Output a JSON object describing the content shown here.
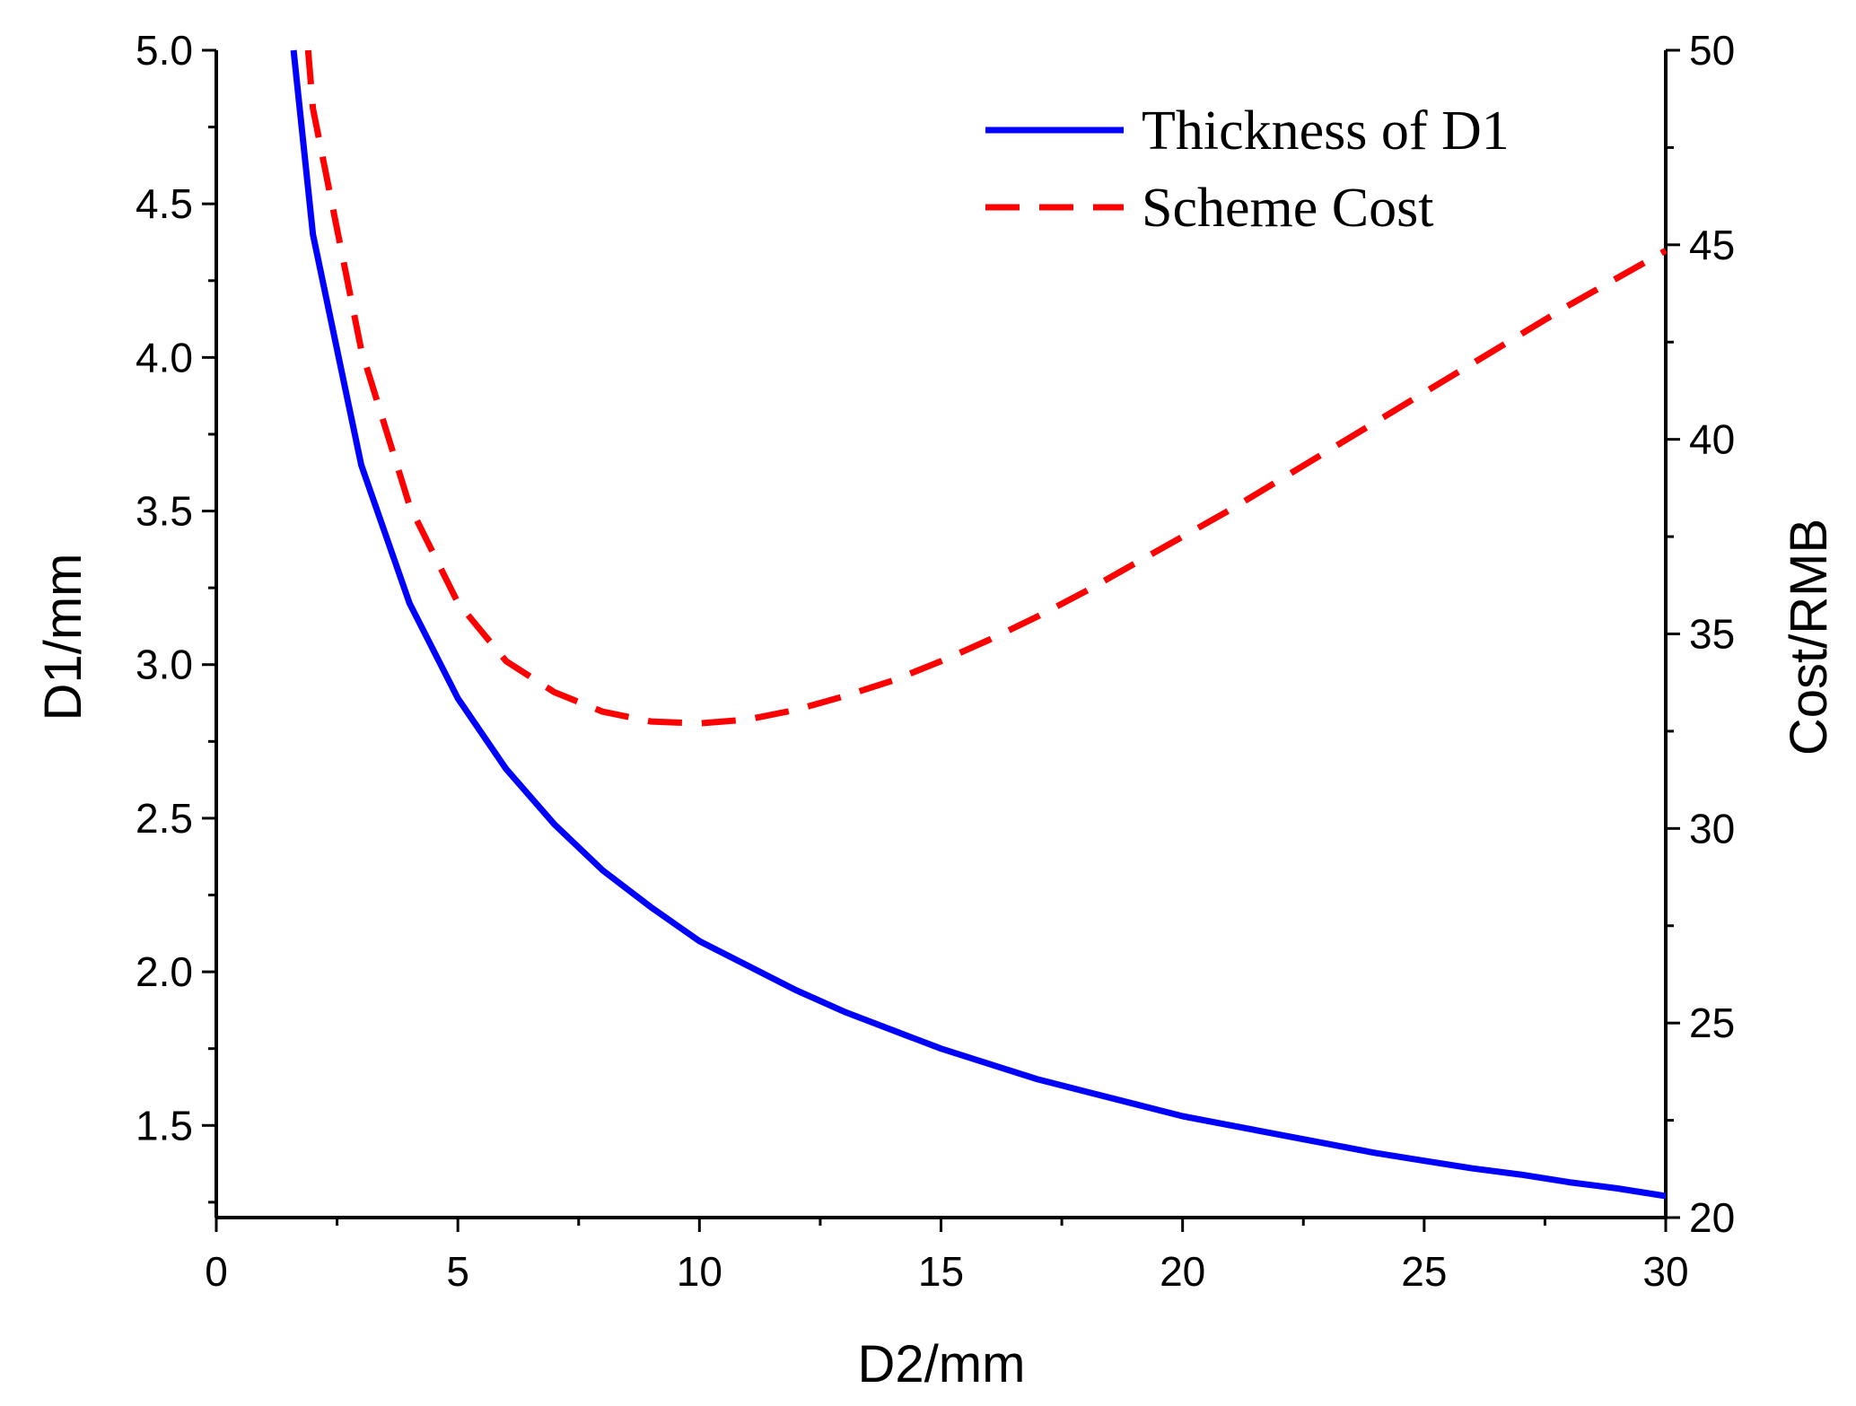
{
  "chart_data": {
    "type": "line",
    "title": "",
    "xlabel": "D2/mm",
    "ylabel": "D1/mm",
    "y2label": "Cost/RMB",
    "xlim": [
      0,
      30
    ],
    "ylim": [
      1.2,
      5.0
    ],
    "y2lim": [
      20,
      50
    ],
    "x_ticks": [
      0,
      5,
      10,
      15,
      20,
      25,
      30
    ],
    "y_ticks": [
      1.5,
      2.0,
      2.5,
      3.0,
      3.5,
      4.0,
      4.5,
      5.0
    ],
    "y2_ticks": [
      20,
      25,
      30,
      35,
      40,
      45,
      50
    ],
    "legend_position": "top-right",
    "series": [
      {
        "name": "Thickness of D1",
        "axis": "left",
        "color": "#0000ff",
        "style": "solid",
        "x": [
          1.6,
          2,
          3,
          4,
          5,
          6,
          7,
          8,
          9,
          10,
          11,
          12,
          13,
          14,
          15,
          16,
          17,
          18,
          19,
          20,
          21,
          22,
          23,
          24,
          25,
          26,
          27,
          28,
          29,
          30
        ],
        "values": [
          5.0,
          4.4,
          3.65,
          3.2,
          2.89,
          2.66,
          2.48,
          2.33,
          2.21,
          2.1,
          2.02,
          1.94,
          1.87,
          1.81,
          1.75,
          1.7,
          1.65,
          1.61,
          1.57,
          1.53,
          1.5,
          1.47,
          1.44,
          1.41,
          1.385,
          1.36,
          1.34,
          1.315,
          1.295,
          1.27
        ]
      },
      {
        "name": "Scheme Cost",
        "axis": "right",
        "color": "#ff0000",
        "style": "dashed",
        "x": [
          1.9,
          2,
          3,
          4,
          5,
          6,
          7,
          8,
          9,
          10,
          11,
          12,
          13,
          14,
          15,
          16,
          17,
          18,
          19,
          20,
          21,
          22,
          23,
          24,
          25,
          26,
          27,
          28,
          29,
          30
        ],
        "values": [
          50,
          48.5,
          42.3,
          38.3,
          35.8,
          34.3,
          33.5,
          33.0,
          32.75,
          32.7,
          32.8,
          33.05,
          33.4,
          33.8,
          34.3,
          34.85,
          35.45,
          36.1,
          36.8,
          37.5,
          38.2,
          38.95,
          39.7,
          40.45,
          41.2,
          41.95,
          42.7,
          43.45,
          44.15,
          44.85
        ]
      }
    ]
  }
}
